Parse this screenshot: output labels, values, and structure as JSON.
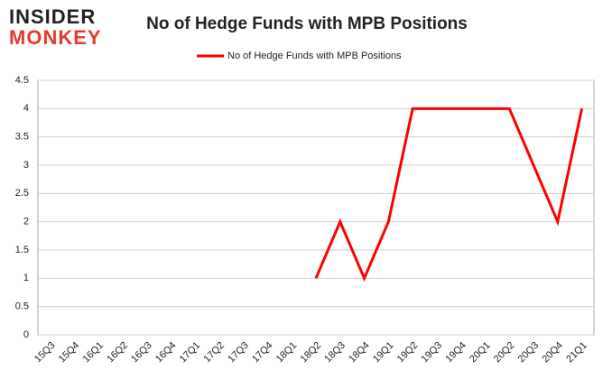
{
  "logo": {
    "line1": "INSIDER",
    "line2": "MONKEY"
  },
  "chart_data": {
    "type": "line",
    "title": "No of Hedge Funds with MPB Positions",
    "categories": [
      "15Q3",
      "15Q4",
      "16Q1",
      "16Q2",
      "16Q3",
      "16Q4",
      "17Q1",
      "17Q2",
      "17Q3",
      "17Q4",
      "18Q1",
      "18Q2",
      "18Q3",
      "18Q4",
      "19Q1",
      "19Q2",
      "19Q3",
      "19Q4",
      "20Q1",
      "20Q2",
      "20Q3",
      "20Q4",
      "21Q1"
    ],
    "series": [
      {
        "name": "No of Hedge Funds with MPB Positions",
        "color": "#ff0000",
        "values": [
          null,
          null,
          null,
          null,
          null,
          null,
          null,
          null,
          null,
          null,
          null,
          1,
          2,
          1,
          2,
          4,
          4,
          4,
          4,
          4,
          3,
          2,
          4
        ]
      }
    ],
    "ylim": [
      0,
      4.5
    ],
    "yticks": [
      0,
      0.5,
      1,
      1.5,
      2,
      2.5,
      3,
      3.5,
      4,
      4.5
    ],
    "grid": true,
    "legend": "top"
  }
}
